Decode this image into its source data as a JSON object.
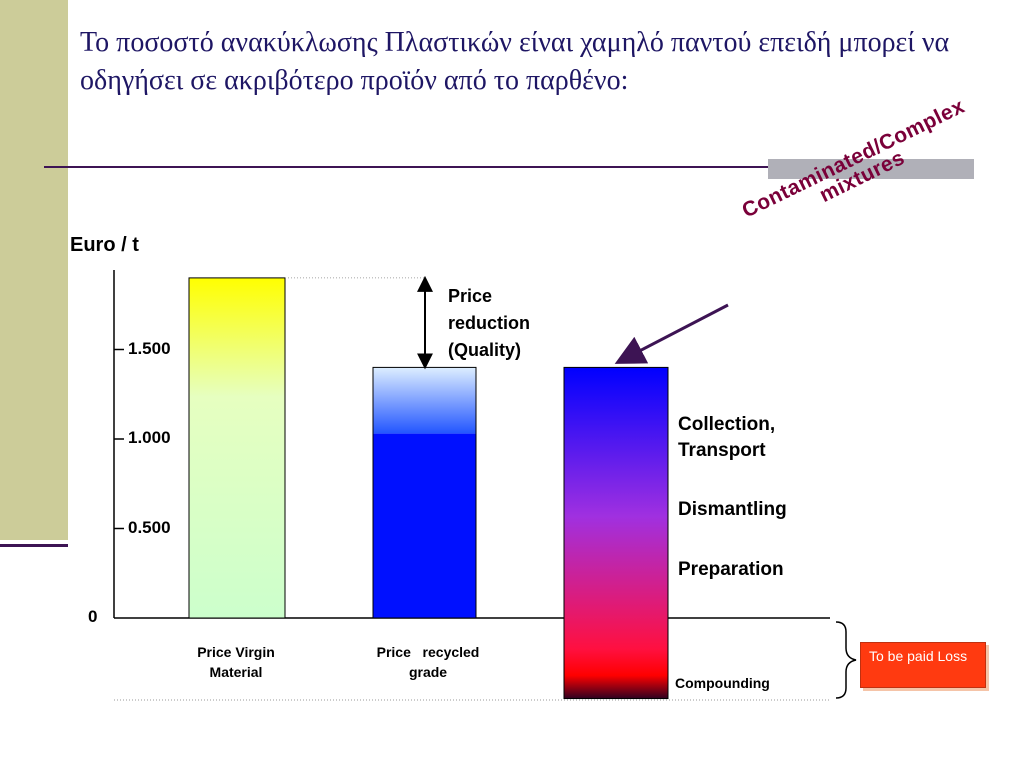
{
  "slide": {
    "title": "Το ποσοστό ανακύκλωσης Πλαστικών είναι χαμηλό παντού επειδή μπορεί να οδηγήσει σε ακριβότερο προϊόν από το παρθένο:"
  },
  "colors": {
    "left_band": "#cccc99",
    "rule": "#3d1454",
    "title_text": "#1e1664",
    "callout_text": "#7a0039",
    "paid_box": "#ff3a10"
  },
  "chart_data": {
    "type": "bar",
    "ylabel": "Euro / t",
    "y_ticks": [
      "0",
      "0.500",
      "1.000",
      "1.500"
    ],
    "y_tick_values": [
      0,
      500,
      1000,
      1500
    ],
    "categories": [
      "Price Virgin Material",
      "Price   recycled grade",
      ""
    ],
    "values": [
      1900,
      1400,
      1400
    ],
    "third_bar_min": -450,
    "series": [
      {
        "values": [
          1900,
          1400,
          1400
        ]
      }
    ],
    "annotations": {
      "price_reduction": "Price reduction (Quality)",
      "callout": "Contaminated/Complex mixtures",
      "costs": [
        "Collection, Transport",
        "Dismantling",
        "Preparation",
        "Compounding"
      ],
      "loss_box": "To be paid Loss"
    },
    "grid": false
  }
}
